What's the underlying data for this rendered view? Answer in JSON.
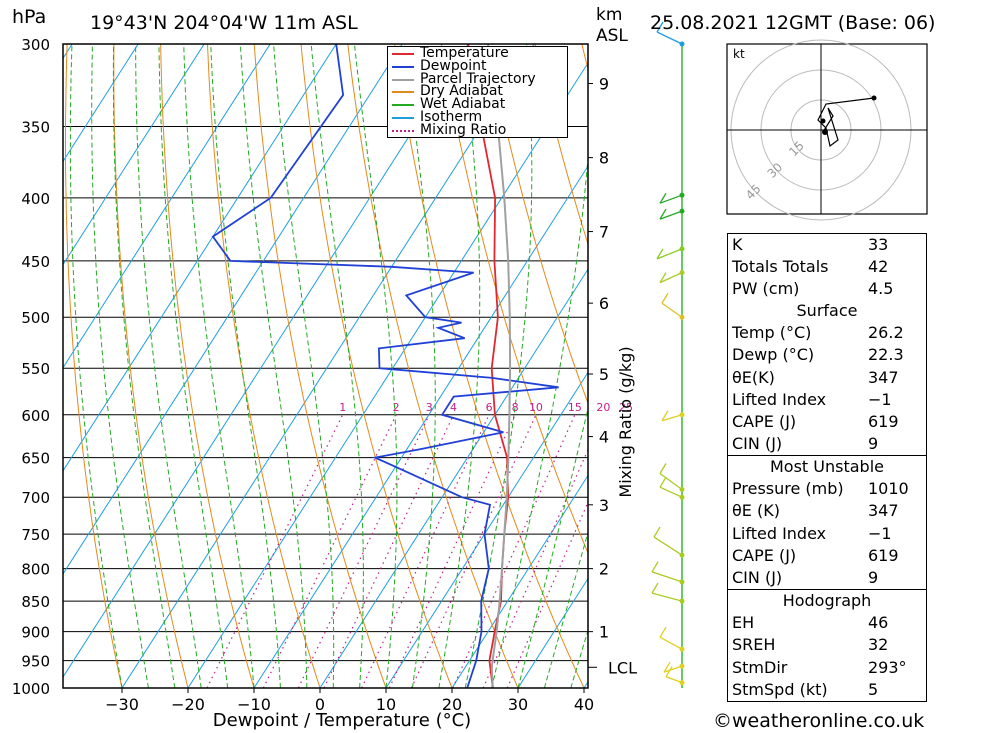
{
  "header": {
    "pressure_unit": "hPa",
    "location": "19°43'N  204°04'W  11m  ASL",
    "height_unit_line1": "km",
    "height_unit_line2": "ASL",
    "datetime": "25.08.2021  12GMT  (Base: 06)"
  },
  "legend": [
    {
      "label": "Temperature",
      "color": "#e0282e",
      "style": "solid"
    },
    {
      "label": "Dewpoint",
      "color": "#2140d6",
      "style": "solid"
    },
    {
      "label": "Parcel Trajectory",
      "color": "#a0a0a0",
      "style": "solid"
    },
    {
      "label": "Dry Adiabat",
      "color": "#e38a1c",
      "style": "solid"
    },
    {
      "label": "Wet Adiabat",
      "color": "#22aa22",
      "style": "solid"
    },
    {
      "label": "Isotherm",
      "color": "#1e9ee0",
      "style": "solid"
    },
    {
      "label": "Mixing Ratio",
      "color": "#c0208a",
      "style": "dotted"
    }
  ],
  "chart_data": {
    "type": "line",
    "xlabel": "Dewpoint / Temperature (°C)",
    "ylabel_right": "Mixing Ratio (g/kg)",
    "x_ticks": [
      "−30",
      "−20",
      "−10",
      "0",
      "10",
      "20",
      "30",
      "40"
    ],
    "x_tick_values": [
      -30,
      -20,
      -10,
      0,
      10,
      20,
      30,
      40
    ],
    "pressure_levels": [
      "300",
      "350",
      "400",
      "450",
      "500",
      "550",
      "600",
      "650",
      "700",
      "750",
      "800",
      "850",
      "900",
      "950",
      "1000"
    ],
    "pressure_values": [
      300,
      350,
      400,
      450,
      500,
      550,
      600,
      650,
      700,
      750,
      800,
      850,
      900,
      950,
      1000
    ],
    "km_ticks": [
      {
        "label": "9",
        "p": 323
      },
      {
        "label": "8",
        "p": 371
      },
      {
        "label": "7",
        "p": 426
      },
      {
        "label": "6",
        "p": 487
      },
      {
        "label": "5",
        "p": 556
      },
      {
        "label": "4",
        "p": 625
      },
      {
        "label": "3",
        "p": 710
      },
      {
        "label": "2",
        "p": 800
      },
      {
        "label": "1",
        "p": 900
      }
    ],
    "lcl_label": "LCL",
    "lcl_pressure": 962,
    "mixing_ratio_labels": [
      "1",
      "2",
      "3",
      "4",
      "6",
      "8",
      "10",
      "15",
      "20",
      "25"
    ],
    "mixing_ratio_values": [
      1,
      2,
      3,
      4,
      6,
      8,
      10,
      15,
      20,
      25
    ],
    "series": [
      {
        "name": "Temperature",
        "points": [
          [
            1000,
            26.2
          ],
          [
            950,
            23
          ],
          [
            900,
            21
          ],
          [
            850,
            19
          ],
          [
            800,
            16
          ],
          [
            750,
            13
          ],
          [
            700,
            10
          ],
          [
            650,
            6
          ],
          [
            600,
            0
          ],
          [
            550,
            -5
          ],
          [
            500,
            -9
          ],
          [
            450,
            -15
          ],
          [
            400,
            -21
          ],
          [
            350,
            -30
          ],
          [
            300,
            -40
          ]
        ]
      },
      {
        "name": "Dewpoint",
        "points": [
          [
            1000,
            22.3
          ],
          [
            950,
            21
          ],
          [
            900,
            19
          ],
          [
            850,
            16
          ],
          [
            800,
            14
          ],
          [
            750,
            10
          ],
          [
            710,
            8
          ],
          [
            700,
            3
          ],
          [
            670,
            -7
          ],
          [
            650,
            -14
          ],
          [
            640,
            -8
          ],
          [
            620,
            3
          ],
          [
            600,
            -8
          ],
          [
            580,
            -8
          ],
          [
            570,
            7
          ],
          [
            560,
            -4
          ],
          [
            550,
            -22
          ],
          [
            530,
            -24
          ],
          [
            520,
            -12
          ],
          [
            510,
            -17
          ],
          [
            505,
            -14
          ],
          [
            500,
            -20
          ],
          [
            480,
            -25
          ],
          [
            460,
            -17
          ],
          [
            455,
            -30
          ],
          [
            450,
            -55
          ],
          [
            430,
            -60
          ],
          [
            400,
            -55
          ],
          [
            330,
            -54
          ],
          [
            300,
            -60
          ]
        ]
      },
      {
        "name": "Parcel Trajectory",
        "points": [
          [
            1000,
            26.2
          ],
          [
            962,
            24.0
          ],
          [
            900,
            21.3
          ],
          [
            850,
            18.8
          ],
          [
            800,
            16.0
          ],
          [
            750,
            13.0
          ],
          [
            700,
            9.8
          ],
          [
            650,
            6.2
          ],
          [
            600,
            2.2
          ],
          [
            550,
            -2.2
          ],
          [
            500,
            -7.2
          ],
          [
            450,
            -12.9
          ],
          [
            400,
            -19.6
          ],
          [
            350,
            -27.5
          ],
          [
            300,
            -37
          ]
        ]
      }
    ]
  },
  "hodograph": {
    "unit": "kt",
    "ring_labels": [
      "15",
      "30",
      "45"
    ]
  },
  "indices": {
    "rows": [
      {
        "label": "K",
        "value": "33"
      },
      {
        "label": "Totals Totals",
        "value": "42"
      },
      {
        "label": "PW (cm)",
        "value": "4.5"
      }
    ]
  },
  "surface": {
    "title": "Surface",
    "rows": [
      {
        "label": "Temp (°C)",
        "value": "26.2"
      },
      {
        "label": "Dewp (°C)",
        "value": "22.3"
      },
      {
        "label": "θE(K)",
        "value": "347"
      },
      {
        "label": "Lifted Index",
        "value": "−1"
      },
      {
        "label": "CAPE (J)",
        "value": "619"
      },
      {
        "label": "CIN (J)",
        "value": "9"
      }
    ]
  },
  "most_unstable": {
    "title": "Most Unstable",
    "rows": [
      {
        "label": "Pressure (mb)",
        "value": "1010"
      },
      {
        "label": "θE (K)",
        "value": "347"
      },
      {
        "label": "Lifted Index",
        "value": "−1"
      },
      {
        "label": "CAPE (J)",
        "value": "619"
      },
      {
        "label": "CIN (J)",
        "value": "9"
      }
    ]
  },
  "hodograph_stats": {
    "title": "Hodograph",
    "rows": [
      {
        "label": "EH",
        "value": "46"
      },
      {
        "label": "SREH",
        "value": "32"
      },
      {
        "label": "StmDir",
        "value": "293°"
      },
      {
        "label": "StmSpd (kt)",
        "value": "5"
      }
    ]
  },
  "footer": {
    "copyright": "©weatheronline.co.uk"
  }
}
